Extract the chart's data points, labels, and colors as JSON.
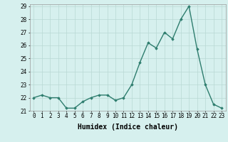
{
  "x": [
    0,
    1,
    2,
    3,
    4,
    5,
    6,
    7,
    8,
    9,
    10,
    11,
    12,
    13,
    14,
    15,
    16,
    17,
    18,
    19,
    20,
    21,
    22,
    23
  ],
  "y": [
    22.0,
    22.2,
    22.0,
    22.0,
    21.2,
    21.2,
    21.7,
    22.0,
    22.2,
    22.2,
    21.8,
    22.0,
    23.0,
    24.7,
    26.2,
    25.8,
    27.0,
    26.5,
    28.0,
    29.0,
    25.7,
    23.0,
    21.5,
    21.2
  ],
  "xlabel": "Humidex (Indice chaleur)",
  "ylim": [
    21,
    29
  ],
  "yticks": [
    21,
    22,
    23,
    24,
    25,
    26,
    27,
    28,
    29
  ],
  "xticks": [
    0,
    1,
    2,
    3,
    4,
    5,
    6,
    7,
    8,
    9,
    10,
    11,
    12,
    13,
    14,
    15,
    16,
    17,
    18,
    19,
    20,
    21,
    22,
    23
  ],
  "line_color": "#2e7d6e",
  "marker": "D",
  "marker_size": 1.8,
  "bg_color": "#d6f0ee",
  "grid_color": "#b8d8d4",
  "tick_label_fontsize": 5.5,
  "xlabel_fontsize": 7,
  "line_width": 1.0
}
